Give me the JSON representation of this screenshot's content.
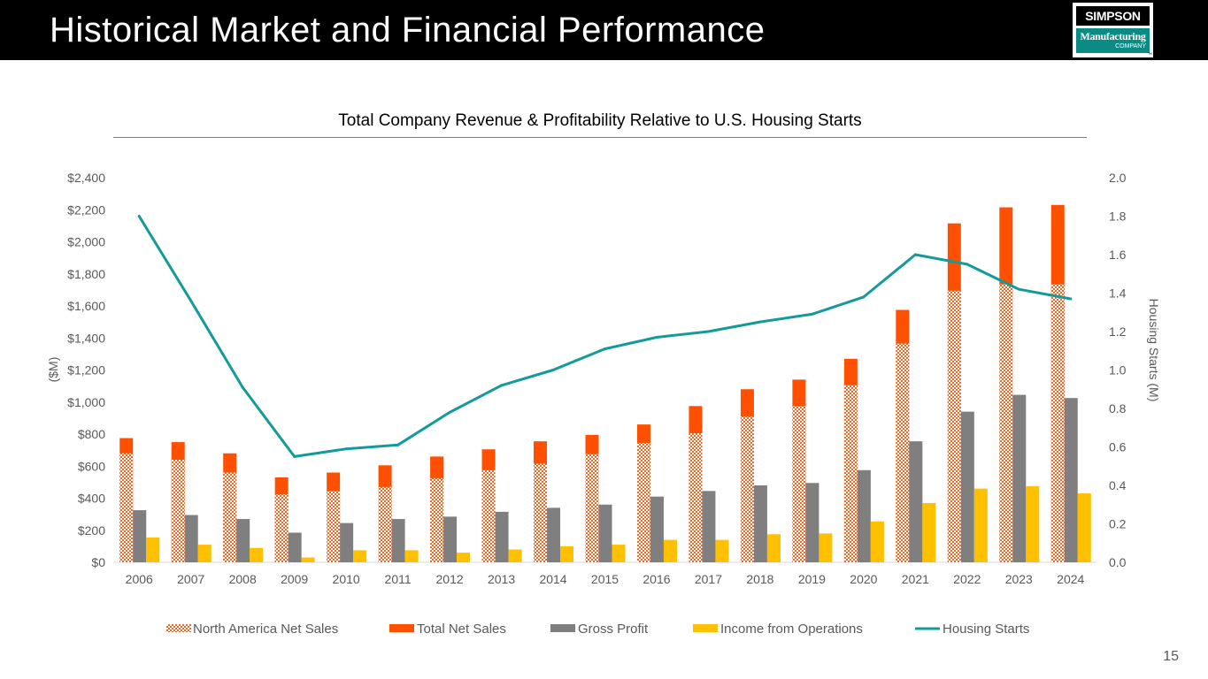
{
  "header": {
    "title": "Historical Market and Financial Performance"
  },
  "logo": {
    "top_text": "SIMPSON",
    "middle_text": "Manufacturing",
    "bottom_text": "COMPANY",
    "tm": "™"
  },
  "page_number": "15",
  "colors": {
    "header_bg": "#000000",
    "north_america": "#f26522",
    "total_net_sales": "#fe5000",
    "gross_profit": "#7f7f7f",
    "income_ops": "#ffc000",
    "housing_starts": "#139b99",
    "logo_teal": "#0c8a84"
  },
  "chart_data": {
    "type": "bar",
    "title": "Total Company Revenue & Profitability Relative to U.S. Housing Starts",
    "ylabel": "($M)",
    "y2label": "Housing Starts (M)",
    "ylim": [
      0,
      2400
    ],
    "y2lim": [
      0,
      2.0
    ],
    "yticks": [
      0,
      200,
      400,
      600,
      800,
      1000,
      1200,
      1400,
      1600,
      1800,
      2000,
      2200,
      2400
    ],
    "ytick_labels": [
      "$0",
      "$200",
      "$400",
      "$600",
      "$800",
      "$1,000",
      "$1,200",
      "$1,400",
      "$1,600",
      "$1,800",
      "$2,000",
      "$2,200",
      "$2,400"
    ],
    "y2ticks": [
      0,
      0.2,
      0.4,
      0.6,
      0.8,
      1.0,
      1.2,
      1.4,
      1.6,
      1.8,
      2.0
    ],
    "y2tick_labels": [
      "0.0",
      "0.2",
      "0.4",
      "0.6",
      "0.8",
      "1.0",
      "1.2",
      "1.4",
      "1.6",
      "1.8",
      "2.0"
    ],
    "categories": [
      "2006",
      "2007",
      "2008",
      "2009",
      "2010",
      "2011",
      "2012",
      "2013",
      "2014",
      "2015",
      "2016",
      "2017",
      "2018",
      "2019",
      "2020",
      "2021",
      "2022",
      "2023",
      "2024"
    ],
    "legend_position": "bottom",
    "series": [
      {
        "name": "North America Net Sales",
        "kind": "bar-overlay-pattern",
        "color": "#f26522",
        "values": [
          680,
          640,
          560,
          425,
          445,
          470,
          525,
          575,
          615,
          675,
          745,
          805,
          910,
          975,
          1105,
          1365,
          1695,
          1735,
          1735
        ]
      },
      {
        "name": "Total Net Sales",
        "kind": "bar",
        "color": "#fe5000",
        "values": [
          775,
          750,
          680,
          530,
          560,
          605,
          660,
          705,
          755,
          795,
          860,
          975,
          1080,
          1140,
          1270,
          1575,
          2115,
          2215,
          2230
        ]
      },
      {
        "name": "Gross Profit",
        "kind": "bar",
        "color": "#7f7f7f",
        "values": [
          325,
          295,
          270,
          185,
          245,
          270,
          285,
          315,
          340,
          360,
          410,
          445,
          480,
          495,
          575,
          755,
          940,
          1045,
          1025
        ]
      },
      {
        "name": "Income from Operations",
        "kind": "bar",
        "color": "#ffc000",
        "values": [
          155,
          110,
          90,
          30,
          75,
          75,
          60,
          80,
          100,
          110,
          140,
          140,
          175,
          180,
          255,
          370,
          460,
          475,
          430
        ]
      },
      {
        "name": "Housing Starts",
        "kind": "line",
        "axis": "right",
        "color": "#139b99",
        "values": [
          1.8,
          1.36,
          0.91,
          0.55,
          0.59,
          0.61,
          0.78,
          0.92,
          1.0,
          1.11,
          1.17,
          1.2,
          1.25,
          1.29,
          1.38,
          1.6,
          1.55,
          1.42,
          1.37
        ]
      }
    ]
  }
}
